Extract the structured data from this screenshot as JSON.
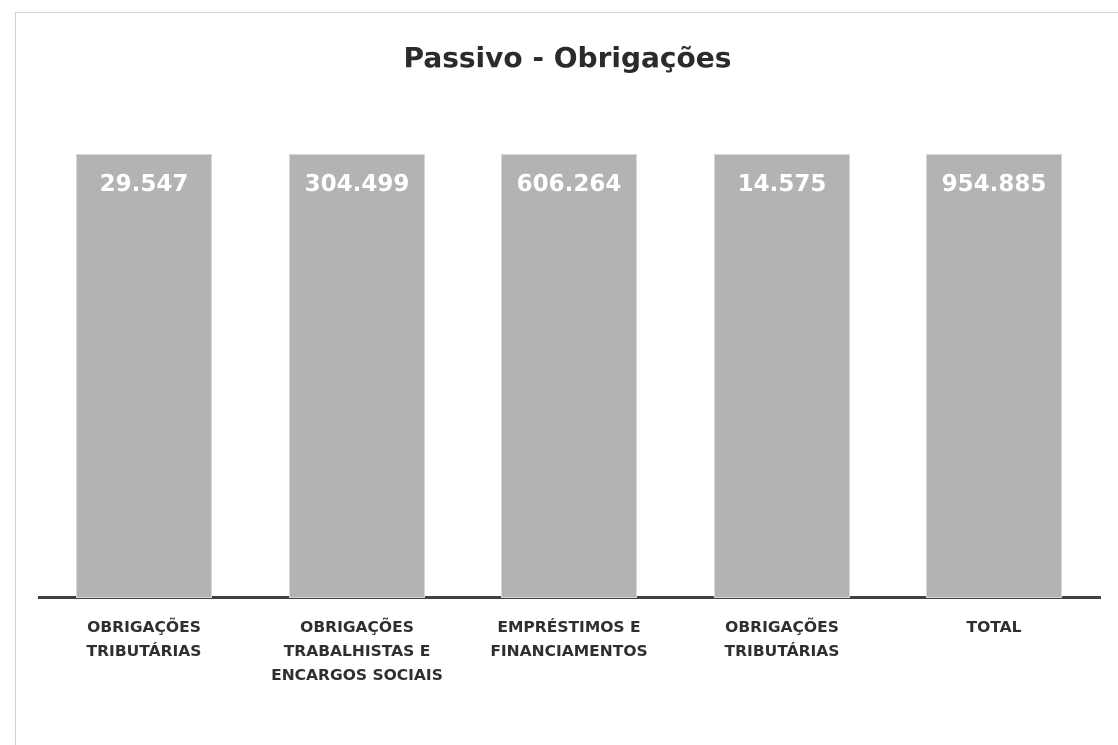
{
  "title": "Passivo - Obrigações",
  "tiles": [
    {
      "value": "29.547",
      "label": "OBRIGAÇÕES TRIBUTÁRIAS"
    },
    {
      "value": "304.499",
      "label": "OBRIGAÇÕES TRABALHISTAS E ENCARGOS SOCIAIS"
    },
    {
      "value": "606.264",
      "label": "EMPRÉSTIMOS E FINANCIAMENTOS"
    },
    {
      "value": "14.575",
      "label": "OBRIGAÇÕES TRIBUTÁRIAS"
    },
    {
      "value": "954.885",
      "label": "TOTAL"
    }
  ]
}
